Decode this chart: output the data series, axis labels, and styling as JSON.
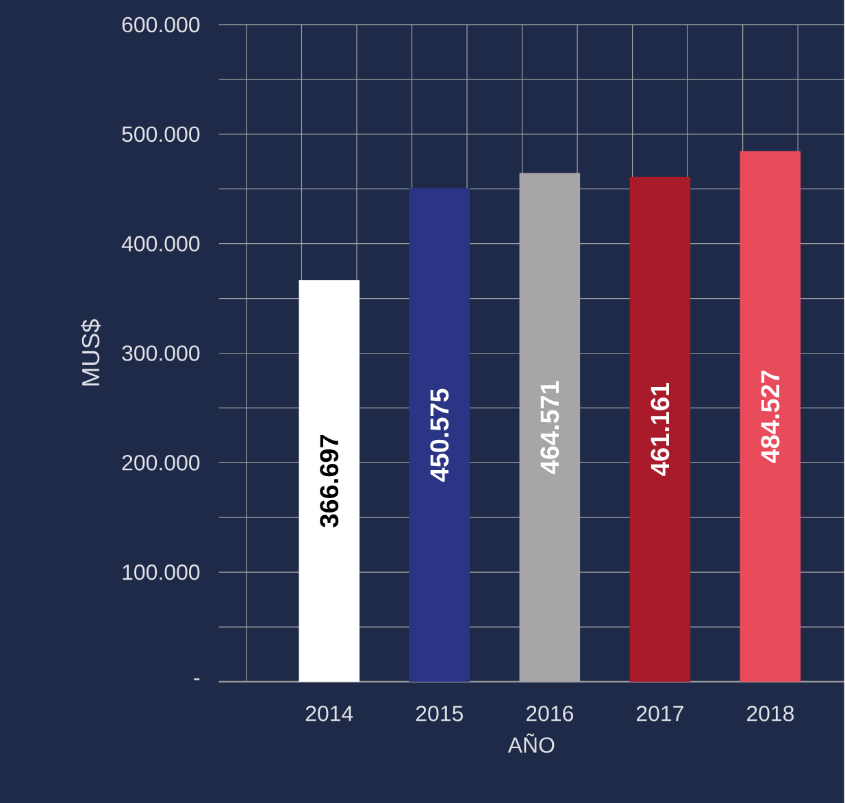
{
  "chart_data": {
    "type": "bar",
    "xlabel": "AÑO",
    "ylabel": "MUS$",
    "categories": [
      "2014",
      "2015",
      "2016",
      "2017",
      "2018"
    ],
    "values": [
      366697,
      450575,
      464571,
      461161,
      484527
    ],
    "colors": [
      "#ffffff",
      "#2b3585",
      "#a7a5a8",
      "#a91b2a",
      "#e84b5a"
    ],
    "value_labels": [
      "366.697",
      "450.575",
      "464.571",
      "461.161",
      "484.527"
    ],
    "ylim": [
      0,
      600000
    ],
    "yticks": [
      {
        "value": 0,
        "label": "-"
      },
      {
        "value": 50000,
        "label": null
      },
      {
        "value": 100000,
        "label": "100.000"
      },
      {
        "value": 150000,
        "label": null
      },
      {
        "value": 200000,
        "label": "200.000"
      },
      {
        "value": 250000,
        "label": null
      },
      {
        "value": 300000,
        "label": "300.000"
      },
      {
        "value": 350000,
        "label": null
      },
      {
        "value": 400000,
        "label": "400.000"
      },
      {
        "value": 450000,
        "label": null
      },
      {
        "value": 500000,
        "label": "500.000"
      },
      {
        "value": 550000,
        "label": null
      },
      {
        "value": 600000,
        "label": "600.000"
      }
    ],
    "grid": true
  }
}
